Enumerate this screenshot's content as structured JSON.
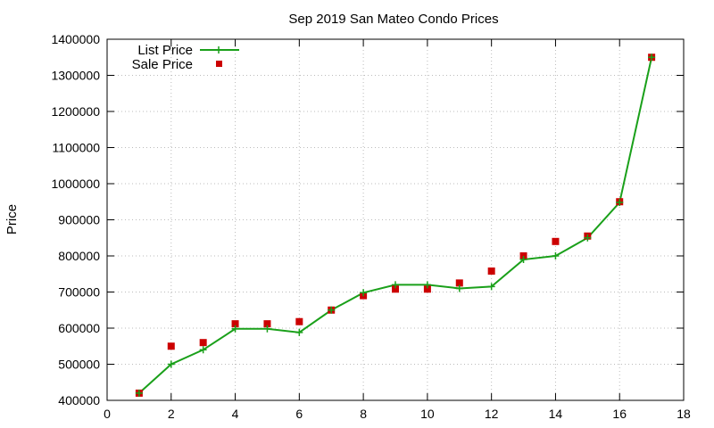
{
  "chart_data": {
    "type": "line",
    "title": "Sep 2019 San Mateo Condo Prices",
    "xlabel": "",
    "ylabel": "Price",
    "xlim": [
      0,
      18
    ],
    "ylim": [
      400000,
      1400000
    ],
    "x_ticks": [
      0,
      2,
      4,
      6,
      8,
      10,
      12,
      14,
      16,
      18
    ],
    "y_ticks": [
      400000,
      500000,
      600000,
      700000,
      800000,
      900000,
      1000000,
      1100000,
      1200000,
      1300000,
      1400000
    ],
    "grid": true,
    "legend_position": "top-left",
    "series": [
      {
        "name": "List Price",
        "style": "line-with-plus-markers",
        "color": "#1aa01a",
        "x": [
          1,
          2,
          3,
          4,
          5,
          6,
          7,
          8,
          9,
          10,
          11,
          12,
          13,
          14,
          15,
          16,
          17
        ],
        "values": [
          420000,
          500000,
          540000,
          598000,
          598000,
          588000,
          650000,
          698000,
          720000,
          720000,
          710000,
          715000,
          790000,
          800000,
          850000,
          948000,
          1350000
        ]
      },
      {
        "name": "Sale Price",
        "style": "square-markers",
        "color": "#cc0000",
        "x": [
          1,
          2,
          3,
          4,
          5,
          6,
          7,
          8,
          9,
          10,
          11,
          12,
          13,
          14,
          15,
          16,
          17
        ],
        "values": [
          420000,
          550000,
          560000,
          612000,
          612000,
          618000,
          650000,
          690000,
          708000,
          708000,
          725000,
          758000,
          800000,
          840000,
          855000,
          950000,
          1350000
        ]
      }
    ]
  }
}
